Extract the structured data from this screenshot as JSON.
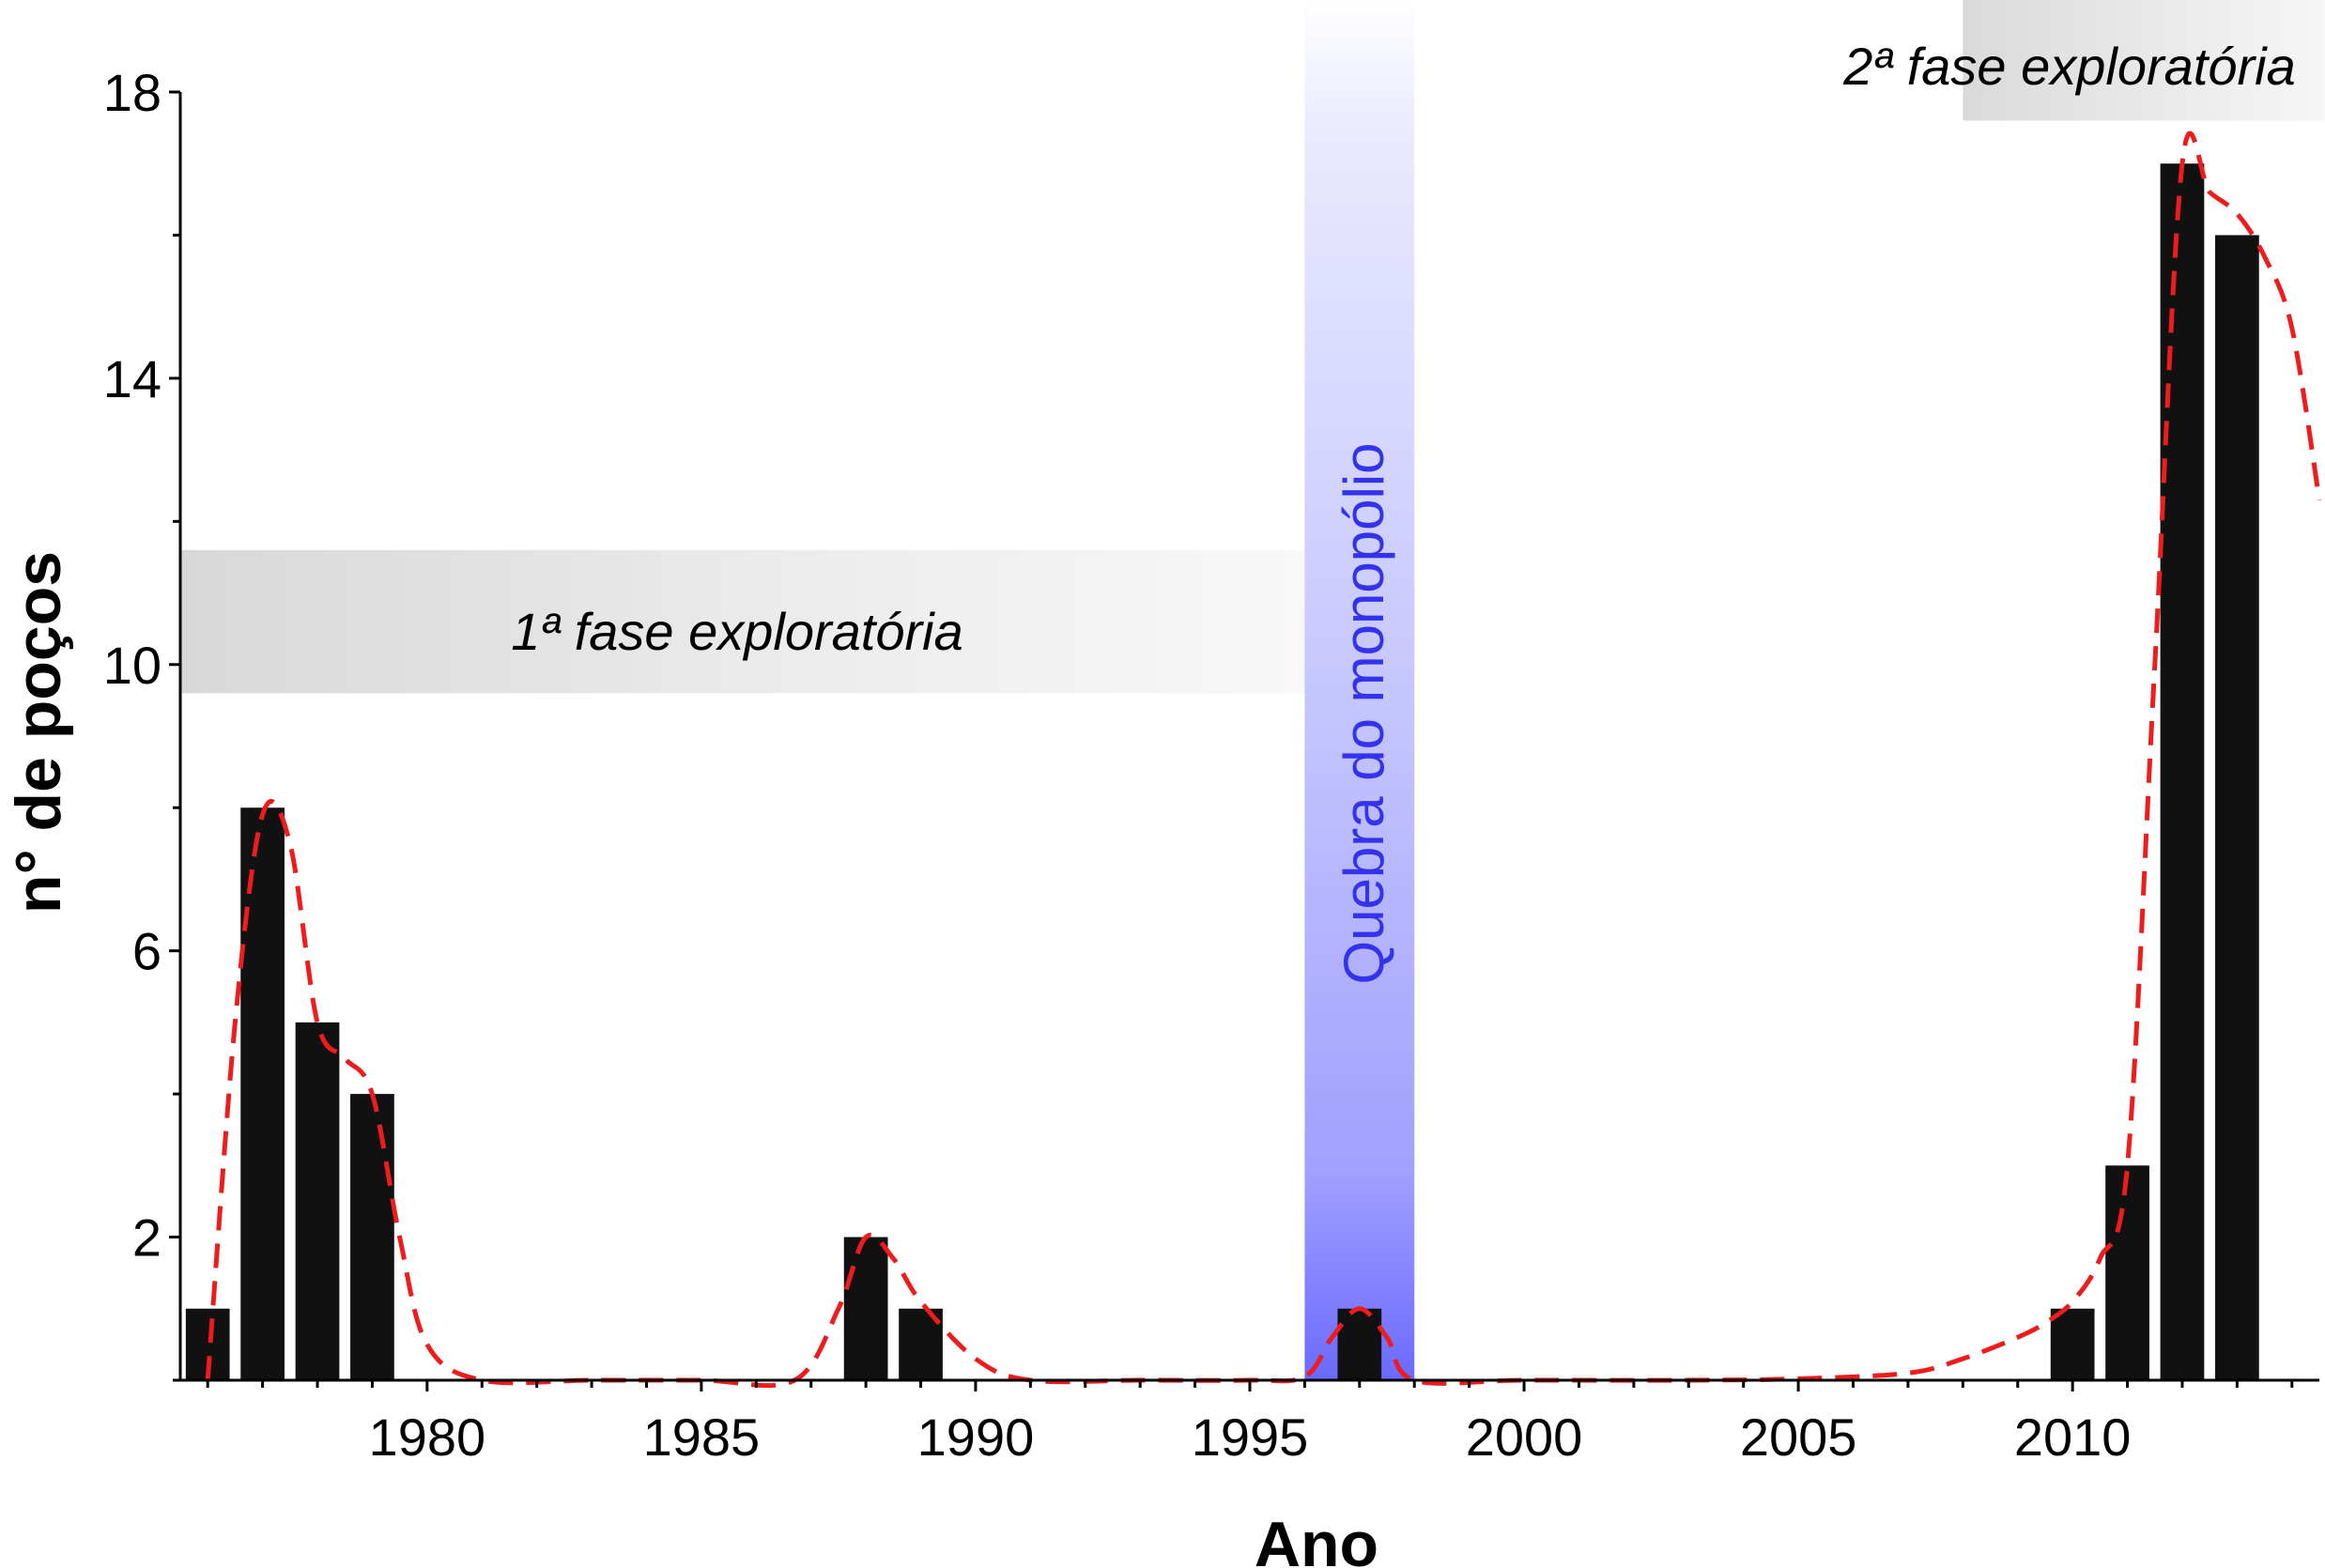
{
  "chart_data": {
    "type": "bar",
    "xlabel": "Ano",
    "ylabel": "n° de poços",
    "xlim": [
      1975.5,
      2014.5
    ],
    "ylim": [
      0,
      18
    ],
    "x_ticks": [
      1980,
      1985,
      1990,
      1995,
      2000,
      2005,
      2010
    ],
    "y_ticks": [
      2,
      6,
      10,
      14,
      18
    ],
    "grid": false,
    "x": [
      1976,
      1977,
      1978,
      1979,
      1988,
      1989,
      1997,
      2010,
      2011,
      2012,
      2013
    ],
    "values": [
      1,
      8,
      5,
      4,
      2,
      1,
      1,
      1,
      3,
      17,
      16
    ],
    "bar_color": "#111111",
    "trend_line": {
      "style": "dashed",
      "color": "#ee1c1c",
      "x": [
        1976,
        1976.5,
        1977,
        1977.5,
        1978,
        1978.5,
        1979,
        1979.5,
        1980,
        1981,
        1983,
        1985,
        1986.7,
        1987.5,
        1988,
        1988.5,
        1989,
        1990,
        1991,
        1993,
        1995,
        1996,
        1996.5,
        1997,
        1997.5,
        1998,
        2000,
        2003,
        2005,
        2007,
        2008,
        2009,
        2009.5,
        2010,
        2010.5,
        2011,
        2011.5,
        2012,
        2012.5,
        2013,
        2013.5,
        2014,
        2014.5
      ],
      "y": [
        0,
        5,
        7.9,
        7.5,
        5,
        4.5,
        4,
        2,
        0.5,
        0,
        0,
        0,
        0,
        1,
        2,
        1.7,
        1.1,
        0.3,
        0,
        0,
        0,
        0.05,
        0.6,
        1,
        0.6,
        0,
        0,
        0,
        0.02,
        0.1,
        0.3,
        0.6,
        0.8,
        1.1,
        1.7,
        3,
        10,
        17,
        16.6,
        16.3,
        15.7,
        14.7,
        12.3
      ]
    },
    "annotations": [
      {
        "text": "1ª fase exploratória",
        "x_range": [
          1975.5,
          1996
        ],
        "y_range": [
          9.6,
          11.6
        ],
        "color": "#d8d8d8"
      },
      {
        "text": "Quebra do monopólio",
        "x_range": [
          1996,
          1998
        ],
        "text_color": "#3333ee",
        "band_color": "#7d7dff"
      },
      {
        "text": "2ª fase exploratória",
        "x_range": [
          2008,
          2014.5
        ],
        "y_range": [
          17.6,
          19.6
        ],
        "color": "#d8d8d8"
      }
    ]
  }
}
